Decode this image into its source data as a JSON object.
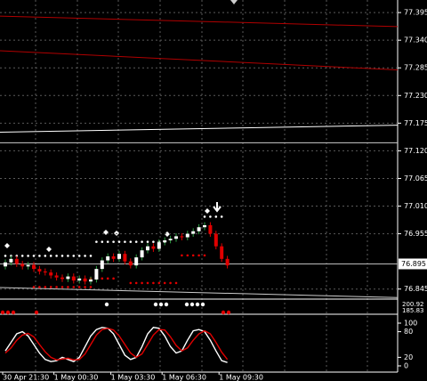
{
  "chart_data": [
    {
      "type": "candlestick",
      "categories": [
        "30 Apr 21:30",
        null,
        null,
        null,
        null,
        null,
        null,
        null,
        null,
        "1 May 00:30",
        null,
        null,
        null,
        null,
        null,
        null,
        null,
        null,
        null,
        "1 May 03:30",
        null,
        null,
        null,
        null,
        null,
        null,
        null,
        null,
        "1 May 06:30",
        null,
        null,
        null,
        null,
        null,
        null,
        null,
        null,
        null,
        "1 May 09:30",
        null
      ],
      "open": [
        76.89,
        76.898,
        76.905,
        76.895,
        76.89,
        76.893,
        76.885,
        76.88,
        76.878,
        76.872,
        76.868,
        76.865,
        76.87,
        76.862,
        76.866,
        76.86,
        76.864,
        76.885,
        76.902,
        76.91,
        76.905,
        76.915,
        76.9,
        76.892,
        76.908,
        76.922,
        76.93,
        76.925,
        76.938,
        76.942,
        76.945,
        76.95,
        76.948,
        76.955,
        76.96,
        76.968,
        76.972,
        76.955,
        76.93,
        76.905
      ],
      "high": [
        76.904,
        76.911,
        76.911,
        76.901,
        76.899,
        76.899,
        76.891,
        76.886,
        76.884,
        76.878,
        76.874,
        76.876,
        76.876,
        76.872,
        76.872,
        76.87,
        76.891,
        76.908,
        76.916,
        76.916,
        76.921,
        76.921,
        76.906,
        76.914,
        76.928,
        76.936,
        76.936,
        76.944,
        76.948,
        76.951,
        76.956,
        76.956,
        76.961,
        76.966,
        76.974,
        76.978,
        76.978,
        76.961,
        76.936,
        76.911
      ],
      "low": [
        76.884,
        76.892,
        76.889,
        76.884,
        76.884,
        76.879,
        76.874,
        76.872,
        76.866,
        76.862,
        76.859,
        76.859,
        76.856,
        76.856,
        76.854,
        76.854,
        76.858,
        76.879,
        76.896,
        76.899,
        76.899,
        76.894,
        76.886,
        76.886,
        76.902,
        76.916,
        76.919,
        76.919,
        76.932,
        76.936,
        76.939,
        76.942,
        76.942,
        76.949,
        76.954,
        76.962,
        76.949,
        76.924,
        76.899,
        76.886
      ],
      "close": [
        76.898,
        76.905,
        76.895,
        76.89,
        76.893,
        76.885,
        76.88,
        76.878,
        76.872,
        76.868,
        76.865,
        76.87,
        76.862,
        76.866,
        76.86,
        76.864,
        76.885,
        76.902,
        76.91,
        76.905,
        76.915,
        76.9,
        76.892,
        76.908,
        76.922,
        76.93,
        76.925,
        76.938,
        76.942,
        76.945,
        76.95,
        76.948,
        76.955,
        76.96,
        76.968,
        76.972,
        76.955,
        76.93,
        76.905,
        76.892
      ],
      "up_color": "#ffffff",
      "down_color": "#e00000",
      "wick_color": "#2ea043",
      "ylim": [
        77.42,
        76.825
      ],
      "yticks": [
        {
          "value": 77.395,
          "label": "77.395"
        },
        {
          "value": 77.34,
          "label": "77.340"
        },
        {
          "value": 77.285,
          "label": "77.285"
        },
        {
          "value": 77.23,
          "label": "77.230"
        },
        {
          "value": 77.175,
          "label": "77.175"
        },
        {
          "value": 77.12,
          "label": "77.120"
        },
        {
          "value": 77.065,
          "label": "77.065"
        },
        {
          "value": 77.01,
          "label": "77.010"
        },
        {
          "value": 76.955,
          "label": "76.955"
        },
        {
          "value": 76.845,
          "label": "76.845"
        }
      ],
      "current_price": 76.895,
      "grid": true,
      "lines": [
        {
          "start": 77.388,
          "end": 77.367,
          "color": "#b00000"
        },
        {
          "start": 77.319,
          "end": 77.281,
          "color": "#b00000"
        },
        {
          "start": 77.157,
          "end": 77.171,
          "color": "#ffffff"
        },
        {
          "start": 77.136,
          "end": 77.136,
          "color": "#cccccc"
        },
        {
          "start": 76.848,
          "end": 76.828,
          "color": "#cccccc"
        }
      ],
      "levels": [
        {
          "from": 0,
          "to": 15,
          "value": 76.911,
          "color": "#ffffff"
        },
        {
          "from": 16,
          "to": 28,
          "value": 76.939,
          "color": "#ffffff"
        },
        {
          "from": 35,
          "to": 38,
          "value": 76.989,
          "color": "#ffffff"
        },
        {
          "from": 5,
          "to": 15,
          "value": 76.849,
          "color": "#e00000"
        },
        {
          "from": 15,
          "to": 19,
          "value": 76.866,
          "color": "#e00000"
        },
        {
          "from": 22,
          "to": 30,
          "value": 76.857,
          "color": "#e00000"
        },
        {
          "from": 31,
          "to": 35,
          "value": 76.912,
          "color": "#e00000"
        }
      ]
    },
    {
      "type": "strip",
      "yticks": [
        "200.92",
        "185.83"
      ]
    },
    {
      "type": "line",
      "series": [
        {
          "color": "#ffffff",
          "values": [
            35,
            55,
            75,
            80,
            70,
            50,
            30,
            15,
            10,
            12,
            20,
            15,
            10,
            20,
            45,
            70,
            85,
            90,
            88,
            75,
            50,
            25,
            15,
            20,
            45,
            75,
            90,
            88,
            70,
            45,
            30,
            35,
            60,
            82,
            85,
            80,
            60,
            35,
            12,
            8
          ]
        },
        {
          "color": "#e00000",
          "values": [
            30,
            42,
            60,
            72,
            76,
            68,
            50,
            33,
            20,
            14,
            16,
            18,
            14,
            15,
            28,
            50,
            72,
            85,
            88,
            84,
            70,
            50,
            30,
            20,
            28,
            50,
            72,
            85,
            84,
            68,
            48,
            35,
            42,
            60,
            75,
            82,
            75,
            55,
            32,
            15
          ]
        }
      ],
      "ylim": [
        0,
        100
      ],
      "yticks": [
        100,
        80,
        20,
        0
      ]
    }
  ]
}
